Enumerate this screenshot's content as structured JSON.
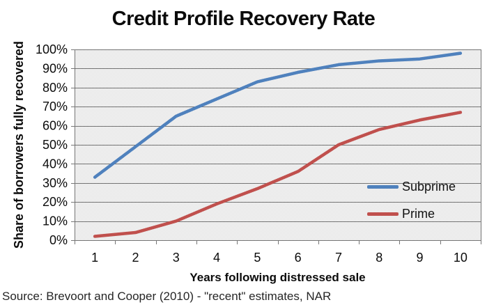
{
  "chart_data": {
    "type": "line",
    "title": "Credit Profile Recovery Rate",
    "xlabel": "Years following distressed sale",
    "ylabel": "Share of borrowers fully recovered",
    "x": [
      1,
      2,
      3,
      4,
      5,
      6,
      7,
      8,
      9,
      10
    ],
    "x_tick_labels": [
      "1",
      "2",
      "3",
      "4",
      "5",
      "6",
      "7",
      "8",
      "9",
      "10"
    ],
    "y_tick_labels": [
      "0%",
      "10%",
      "20%",
      "30%",
      "40%",
      "50%",
      "60%",
      "70%",
      "80%",
      "90%",
      "100%"
    ],
    "ylim": [
      0,
      100
    ],
    "ytick_step": 10,
    "grid": true,
    "legend_position": "inside-lower-right",
    "colors": {
      "plot_background": "#ececec",
      "gridline": "#757575",
      "axis": "#757575",
      "subprime": "#4F81BD",
      "prime": "#C0504D"
    },
    "series": [
      {
        "name": "Subprime",
        "color": "#4F81BD",
        "values": [
          33,
          49,
          65,
          74,
          83,
          88,
          92,
          94,
          95,
          98
        ]
      },
      {
        "name": "Prime",
        "color": "#C0504D",
        "values": [
          2,
          4,
          10,
          19,
          27,
          36,
          50,
          58,
          63,
          67
        ]
      }
    ],
    "source_note": "Source: Brevoort and Cooper (2010) - \"recent\" estimates, NAR"
  }
}
